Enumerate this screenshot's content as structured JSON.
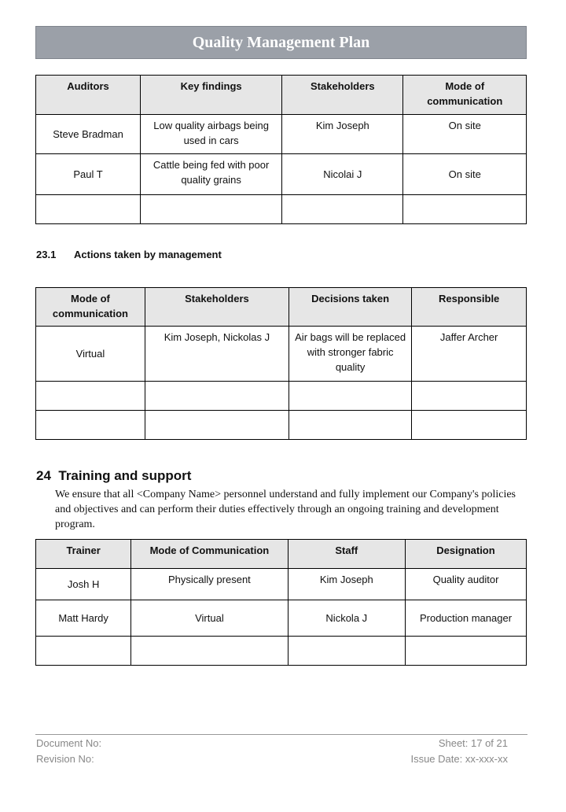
{
  "title": "Quality Management Plan",
  "table1": {
    "headers": [
      "Auditors",
      "Key findings",
      "Stakeholders",
      "Mode of communication"
    ],
    "rows": [
      [
        "Steve Bradman",
        "Low quality airbags being used in cars",
        "Kim Joseph",
        "On site"
      ],
      [
        "Paul T",
        "Cattle being fed with poor quality grains",
        "Nicolai J",
        "On site"
      ],
      [
        "",
        "",
        "",
        ""
      ]
    ]
  },
  "section231": {
    "number": "23.1",
    "title": "Actions taken by management"
  },
  "table2": {
    "headers": [
      "Mode of communication",
      "Stakeholders",
      "Decisions taken",
      "Responsible"
    ],
    "rows": [
      [
        "Virtual",
        "Kim Joseph, Nickolas J",
        "Air bags will be replaced with stronger fabric quality",
        "Jaffer Archer"
      ],
      [
        "",
        "",
        "",
        ""
      ],
      [
        "",
        "",
        "",
        ""
      ]
    ]
  },
  "section24": {
    "number": "24",
    "title": "Training and support",
    "paragraph": "We ensure that all <Company Name> personnel understand and fully implement our Company's policies and objectives and can perform their duties effectively through an ongoing training and development program."
  },
  "table3": {
    "headers": [
      "Trainer",
      "Mode of Communication",
      "Staff",
      "Designation"
    ],
    "rows": [
      [
        "Josh H",
        "Physically present",
        "Kim Joseph",
        "Quality auditor"
      ],
      [
        "Matt Hardy",
        "Virtual",
        "Nickola J",
        "Production manager"
      ],
      [
        "",
        "",
        "",
        ""
      ]
    ]
  },
  "footer": {
    "document_no": "Document No:",
    "revision_no": "Revision No:",
    "sheet": "Sheet: 17 of 21",
    "issue_date": "Issue Date: xx-xxx-xx"
  }
}
